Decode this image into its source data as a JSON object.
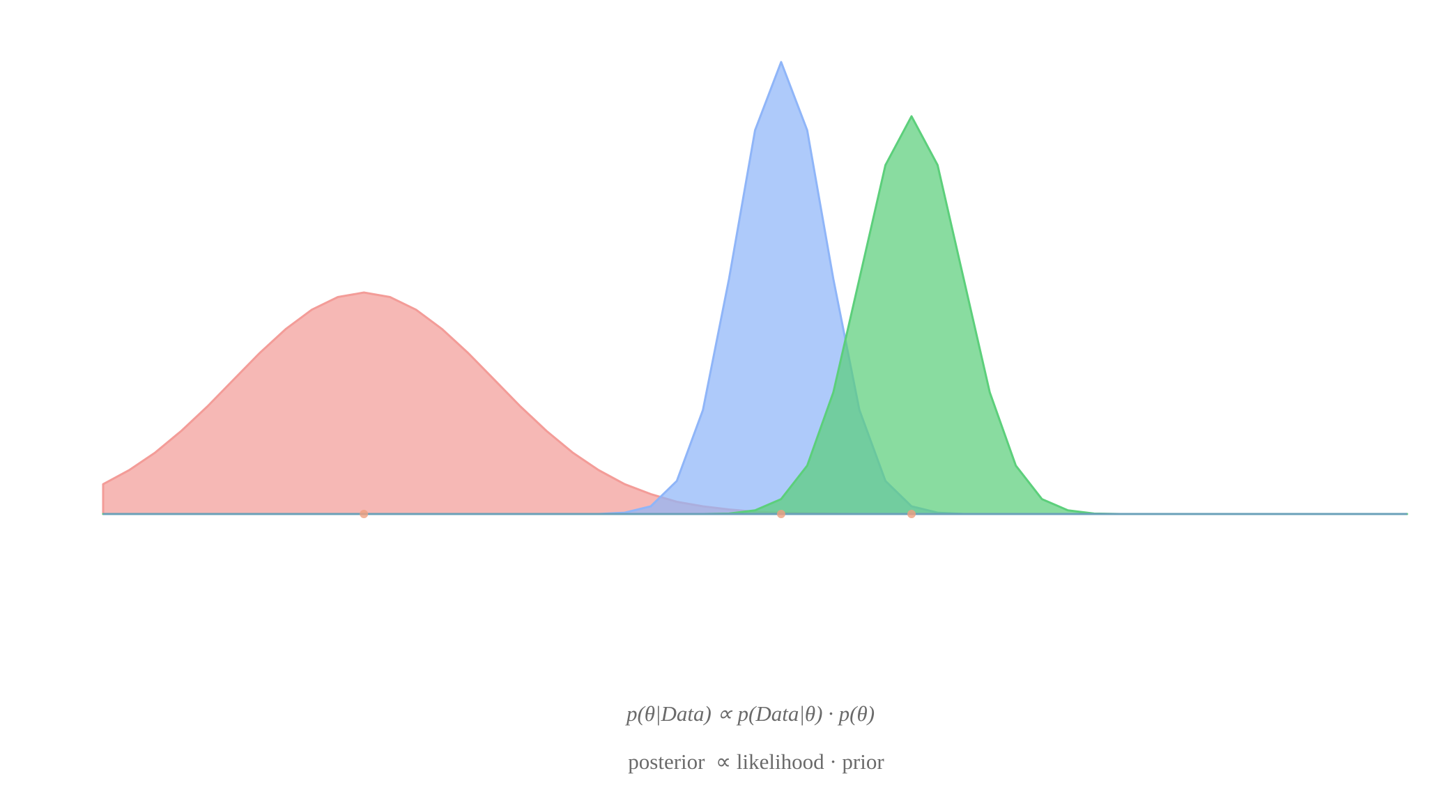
{
  "chart_data": {
    "type": "area",
    "x": [
      0,
      2,
      4,
      6,
      8,
      10,
      12,
      14,
      16,
      18,
      20,
      22,
      24,
      26,
      28,
      30,
      32,
      34,
      36,
      38,
      40,
      42,
      44,
      46,
      48,
      50,
      52,
      54,
      56,
      58,
      60,
      62,
      64,
      66,
      68,
      70,
      72,
      74,
      76,
      78,
      80,
      82,
      84,
      86,
      88,
      90,
      92,
      94,
      96,
      98,
      100
    ],
    "xlim": [
      0,
      100
    ],
    "ylim": [
      0,
      100
    ],
    "series": [
      {
        "color": "#f39c98",
        "values": [
          6.6,
          9.7,
          13.6,
          18.4,
          23.8,
          29.7,
          35.6,
          40.9,
          45.2,
          48.0,
          49,
          48.0,
          45.2,
          40.9,
          35.6,
          29.7,
          23.8,
          18.4,
          13.6,
          9.7,
          6.6,
          4.4,
          2.7,
          1.7,
          1.0,
          0.5,
          0.3,
          0.2,
          0.1,
          0,
          0,
          0,
          0,
          0,
          0,
          0,
          0,
          0,
          0,
          0,
          0,
          0,
          0,
          0,
          0,
          0,
          0,
          0,
          0,
          0,
          0
        ]
      },
      {
        "color": "#8fb5f8",
        "values": [
          0,
          0,
          0,
          0,
          0,
          0,
          0,
          0,
          0,
          0,
          0,
          0,
          0,
          0,
          0,
          0,
          0,
          0,
          0,
          0,
          0.3,
          1.7,
          7.3,
          23.0,
          52.0,
          84.9,
          100,
          84.9,
          52.0,
          23.0,
          7.3,
          1.7,
          0.3,
          0,
          0,
          0,
          0,
          0,
          0,
          0,
          0,
          0,
          0,
          0,
          0,
          0,
          0,
          0,
          0,
          0,
          0
        ]
      },
      {
        "color": "#5ccf7b",
        "values": [
          0,
          0,
          0,
          0,
          0,
          0,
          0,
          0,
          0,
          0,
          0,
          0,
          0,
          0,
          0,
          0,
          0,
          0,
          0,
          0,
          0,
          0,
          0,
          0,
          0.1,
          0.8,
          3.3,
          10.7,
          26.9,
          52.0,
          77.2,
          88,
          77.2,
          52.0,
          26.9,
          10.7,
          3.3,
          0.8,
          0.1,
          0,
          0,
          0,
          0,
          0,
          0,
          0,
          0,
          0,
          0,
          0,
          0
        ]
      }
    ],
    "markers": [
      20,
      52,
      62
    ],
    "marker_color": "#f0a080",
    "formula": "p(θ|Data) ∝ p(Data|θ) · p(θ)",
    "caption": "posterior  ∝ likelihood · prior"
  }
}
